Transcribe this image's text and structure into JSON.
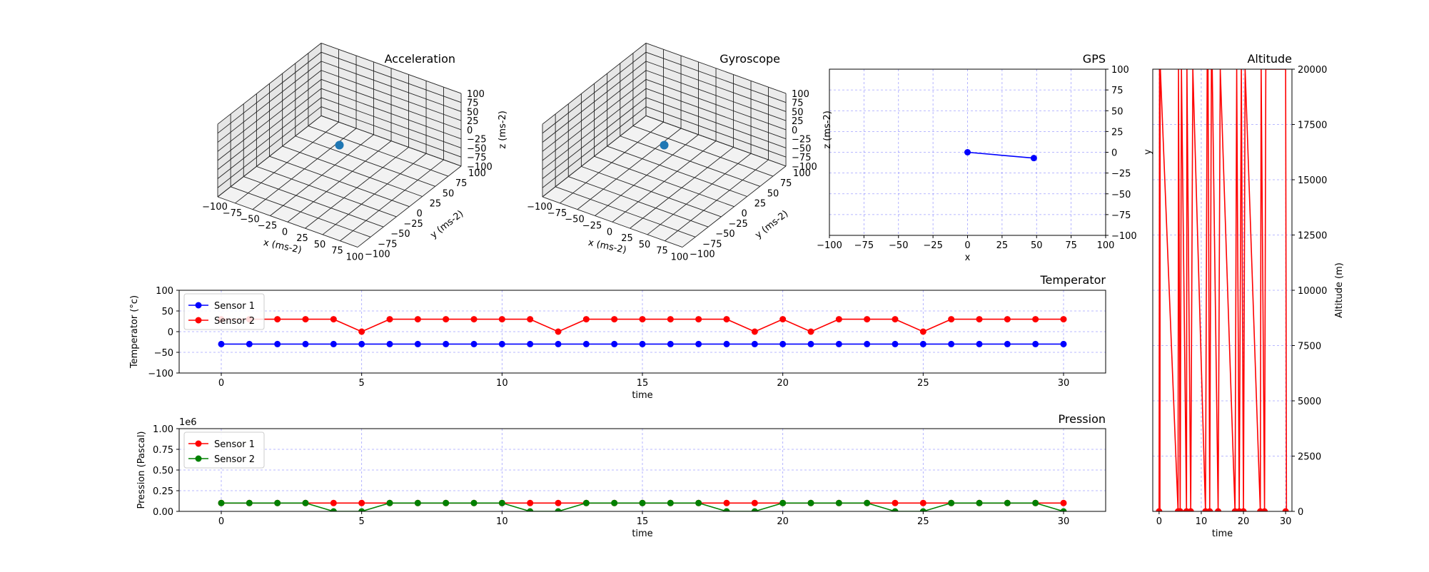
{
  "chart_data": [
    {
      "id": "acceleration",
      "type": "scatter3d",
      "title": "Acceleration",
      "xlabel": "x (ms-2)",
      "ylabel": "y (ms-2)",
      "zlabel": "z (ms-2)",
      "xlim": [
        -100,
        100
      ],
      "ylim": [
        -100,
        100
      ],
      "zlim": [
        -100,
        100
      ],
      "ticks": [
        -100,
        -75,
        -50,
        -25,
        0,
        25,
        50,
        75,
        100
      ],
      "tick_labels": [
        "−100",
        "−75",
        "−50",
        "−25",
        "0",
        "25",
        "50",
        "75",
        "100"
      ],
      "points": [
        [
          0,
          0,
          0
        ]
      ],
      "point_color": "#1f77b4",
      "grid": true
    },
    {
      "id": "gyroscope",
      "type": "scatter3d",
      "title": "Gyroscope",
      "xlabel": "x (ms-2)",
      "ylabel": "y (ms-2)",
      "zlabel": "z (ms-2)",
      "xlim": [
        -100,
        100
      ],
      "ylim": [
        -100,
        100
      ],
      "zlim": [
        -100,
        100
      ],
      "ticks": [
        -100,
        -75,
        -50,
        -25,
        0,
        25,
        50,
        75,
        100
      ],
      "tick_labels": [
        "−100",
        "−75",
        "−50",
        "−25",
        "0",
        "25",
        "50",
        "75",
        "100"
      ],
      "points": [
        [
          0,
          0,
          0
        ]
      ],
      "point_color": "#1f77b4",
      "grid": true
    },
    {
      "id": "gps",
      "type": "line",
      "title": "GPS",
      "xlabel": "x",
      "ylabel": "y",
      "xlim": [
        -100,
        100
      ],
      "ylim": [
        -100,
        100
      ],
      "xticks": [
        -100,
        -75,
        -50,
        -25,
        0,
        25,
        50,
        75,
        100
      ],
      "xtick_labels": [
        "−100",
        "−75",
        "−50",
        "−25",
        "0",
        "25",
        "50",
        "75",
        "100"
      ],
      "yticks": [
        -100,
        -75,
        -50,
        -25,
        0,
        25,
        50,
        75,
        100
      ],
      "ytick_labels": [
        "−100",
        "−75",
        "−50",
        "−25",
        "0",
        "25",
        "50",
        "75",
        "100"
      ],
      "yaxis_side": "right",
      "grid": true,
      "series": [
        {
          "color": "#0000ff",
          "x": [
            0,
            48
          ],
          "y": [
            0,
            -7
          ]
        }
      ]
    },
    {
      "id": "altitude",
      "type": "line",
      "title": "Altitude",
      "xlabel": "time",
      "ylabel": "Altitude (m)",
      "xlim": [
        -1.5,
        31.5
      ],
      "ylim": [
        0,
        20000
      ],
      "xticks": [
        0,
        10,
        20,
        30
      ],
      "xtick_labels": [
        "0",
        "10",
        "20",
        "30"
      ],
      "yticks": [
        0,
        2500,
        5000,
        7500,
        10000,
        12500,
        15000,
        17500,
        20000
      ],
      "ytick_labels": [
        "0",
        "2500",
        "5000",
        "7500",
        "10000",
        "12500",
        "15000",
        "17500",
        "20000"
      ],
      "yaxis_side": "right",
      "grid": true,
      "series": [
        {
          "color": "#ff0000",
          "x": [
            0,
            0.1,
            0.15,
            0.2,
            0.25,
            0.3,
            4.5,
            4.6,
            5,
            5.3,
            6.5,
            6.6,
            7.5,
            8,
            11,
            11.4,
            11.6,
            12,
            12.4,
            12.6,
            14,
            14.5,
            18,
            18.4,
            19,
            19.5,
            20,
            20.4,
            24,
            24.2,
            25,
            25.3,
            29.8,
            30,
            30.2
          ],
          "y": [
            0,
            20000,
            20000,
            0,
            20000,
            20000,
            0,
            20000,
            0,
            20000,
            0,
            20000,
            0,
            20000,
            0,
            20000,
            20000,
            0,
            20000,
            20000,
            0,
            20000,
            0,
            20000,
            0,
            20000,
            0,
            20000,
            0,
            20000,
            0,
            20000,
            20000,
            20000,
            0
          ],
          "markers_at_zero": [
            0,
            4.5,
            5,
            6.5,
            7.5,
            11,
            12,
            14,
            18,
            19,
            20,
            24,
            25,
            30
          ]
        }
      ]
    },
    {
      "id": "temperature",
      "type": "line",
      "title": "Temperator",
      "xlabel": "time",
      "ylabel": "Temperator (°c)",
      "xlim": [
        -1.5,
        31.5
      ],
      "ylim": [
        -100,
        100
      ],
      "xticks": [
        0,
        5,
        10,
        15,
        20,
        25,
        30
      ],
      "xtick_labels": [
        "0",
        "5",
        "10",
        "15",
        "20",
        "25",
        "30"
      ],
      "yticks": [
        -100,
        -50,
        0,
        50,
        100
      ],
      "ytick_labels": [
        "−100",
        "−50",
        "0",
        "50",
        "100"
      ],
      "grid": true,
      "legend": "top-left",
      "series": [
        {
          "name": "Sensor 1",
          "color": "#0000ff",
          "x": [
            0,
            1,
            2,
            3,
            4,
            5,
            6,
            7,
            8,
            9,
            10,
            11,
            12,
            13,
            14,
            15,
            16,
            17,
            18,
            19,
            20,
            21,
            22,
            23,
            24,
            25,
            26,
            27,
            28,
            29,
            30
          ],
          "values": [
            -30,
            -30,
            -30,
            -30,
            -30,
            -30,
            -30,
            -30,
            -30,
            -30,
            -30,
            -30,
            -30,
            -30,
            -30,
            -30,
            -30,
            -30,
            -30,
            -30,
            -30,
            -30,
            -30,
            -30,
            -30,
            -30,
            -30,
            -30,
            -30,
            -30,
            -30
          ]
        },
        {
          "name": "Sensor 2",
          "color": "#ff0000",
          "x": [
            0,
            1,
            2,
            3,
            4,
            5,
            6,
            7,
            8,
            9,
            10,
            11,
            12,
            13,
            14,
            15,
            16,
            17,
            18,
            19,
            20,
            21,
            22,
            23,
            24,
            25,
            26,
            27,
            28,
            29,
            30
          ],
          "values": [
            30,
            30,
            30,
            30,
            30,
            0,
            30,
            30,
            30,
            30,
            30,
            30,
            0,
            30,
            30,
            30,
            30,
            30,
            30,
            0,
            30,
            0,
            30,
            30,
            30,
            0,
            30,
            30,
            30,
            30,
            30
          ]
        }
      ]
    },
    {
      "id": "pression",
      "type": "line",
      "title": "Pression",
      "xlabel": "time",
      "ylabel": "Pression (Pascal)",
      "offset_label": "1e6",
      "xlim": [
        -1.5,
        31.5
      ],
      "ylim": [
        0,
        1.0
      ],
      "xticks": [
        0,
        5,
        10,
        15,
        20,
        25,
        30
      ],
      "xtick_labels": [
        "0",
        "5",
        "10",
        "15",
        "20",
        "25",
        "30"
      ],
      "yticks": [
        0,
        0.25,
        0.5,
        0.75,
        1.0
      ],
      "ytick_labels": [
        "0.00",
        "0.25",
        "0.50",
        "0.75",
        "1.00"
      ],
      "grid": true,
      "legend": "top-left",
      "series": [
        {
          "name": "Sensor 1",
          "color": "#ff0000",
          "x": [
            0,
            1,
            2,
            3,
            4,
            5,
            6,
            7,
            8,
            9,
            10,
            11,
            12,
            13,
            14,
            15,
            16,
            17,
            18,
            19,
            20,
            21,
            22,
            23,
            24,
            25,
            26,
            27,
            28,
            29,
            30
          ],
          "values": [
            0.101,
            0.101,
            0.101,
            0.101,
            0.101,
            0.101,
            0.101,
            0.101,
            0.101,
            0.101,
            0.101,
            0.101,
            0.101,
            0.101,
            0.101,
            0.101,
            0.101,
            0.101,
            0.101,
            0.101,
            0.101,
            0.101,
            0.101,
            0.101,
            0.101,
            0.101,
            0.101,
            0.101,
            0.101,
            0.101,
            0.101
          ]
        },
        {
          "name": "Sensor 2",
          "color": "#008000",
          "x": [
            0,
            1,
            2,
            3,
            4,
            5,
            6,
            7,
            8,
            9,
            10,
            11,
            12,
            13,
            14,
            15,
            16,
            17,
            18,
            19,
            20,
            21,
            22,
            23,
            24,
            25,
            26,
            27,
            28,
            29,
            30
          ],
          "values": [
            0.101,
            0.101,
            0.101,
            0.101,
            0,
            0,
            0.101,
            0.101,
            0.101,
            0.101,
            0.101,
            0,
            0,
            0.101,
            0.101,
            0.101,
            0.101,
            0.101,
            0,
            0,
            0.101,
            0.101,
            0.101,
            0.101,
            0,
            0,
            0.101,
            0.101,
            0.101,
            0.101,
            0
          ]
        }
      ]
    }
  ]
}
